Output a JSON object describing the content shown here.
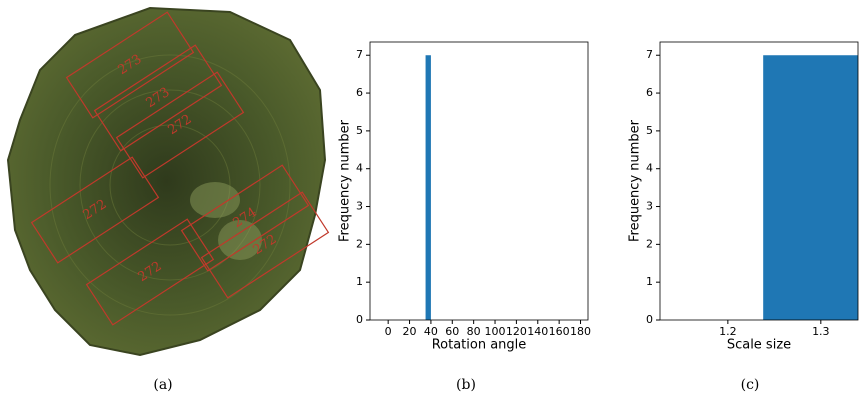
{
  "panel_a": {
    "labels": [
      "273",
      "273",
      "272",
      "272",
      "274",
      "272",
      "272"
    ]
  },
  "captions": [
    "(a)",
    "(b)",
    "(c)"
  ],
  "chart_data": [
    {
      "type": "histogram",
      "x_label": "Rotation angle",
      "y_label": "Frequency number",
      "bins": [
        35,
        40
      ],
      "values": [
        7
      ],
      "color": "#1f77b4",
      "xlim": [
        -17,
        187
      ],
      "ylim": [
        0,
        7.35
      ],
      "xticks": [
        0,
        20,
        40,
        60,
        80,
        100,
        120,
        140,
        160,
        180
      ],
      "yticks": [
        0,
        1,
        2,
        3,
        4,
        5,
        6,
        7
      ]
    },
    {
      "type": "histogram",
      "x_label": "Scale size",
      "y_label": "Frequency number",
      "bins": [
        1.238,
        1.34
      ],
      "values": [
        7
      ],
      "color": "#1f77b4",
      "xlim": [
        1.127,
        1.34
      ],
      "ylim": [
        0,
        7.35
      ],
      "xticks": [
        1.2,
        1.3
      ],
      "yticks": [
        0,
        1,
        2,
        3,
        4,
        5,
        6,
        7
      ]
    }
  ]
}
